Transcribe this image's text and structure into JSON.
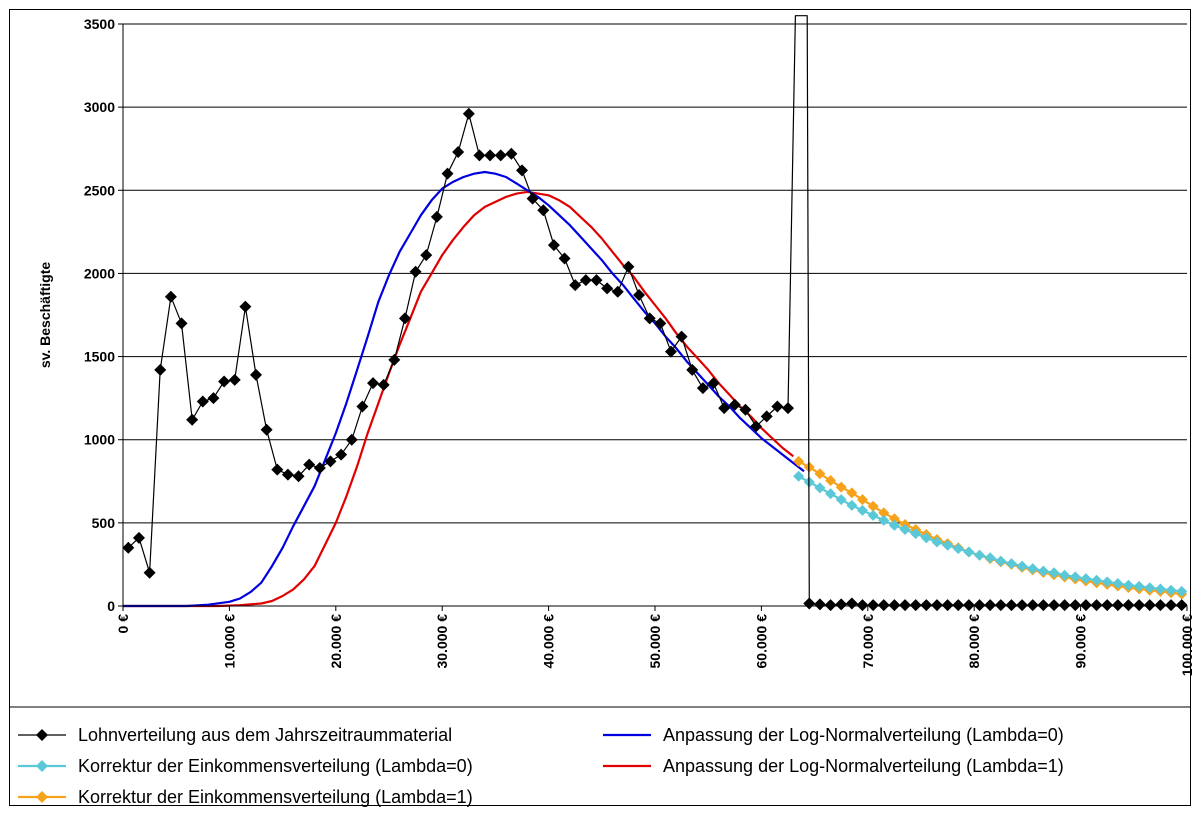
{
  "chart_data": {
    "type": "line",
    "title": "",
    "xlabel": "",
    "ylabel": "sv. Beschäftigte",
    "xlim": [
      0,
      100000
    ],
    "ylim": [
      0,
      3500
    ],
    "grid": "horizontal",
    "legend_placement": "bottom",
    "x_ticks": [
      {
        "value": 0,
        "label": "0 €"
      },
      {
        "value": 10000,
        "label": "10.000 €"
      },
      {
        "value": 20000,
        "label": "20.000 €"
      },
      {
        "value": 30000,
        "label": "30.000 €"
      },
      {
        "value": 40000,
        "label": "40.000 €"
      },
      {
        "value": 50000,
        "label": "50.000 €"
      },
      {
        "value": 60000,
        "label": "60.000 €"
      },
      {
        "value": 70000,
        "label": "70.000 €"
      },
      {
        "value": 80000,
        "label": "80.000 €"
      },
      {
        "value": 90000,
        "label": "90.000 €"
      },
      {
        "value": 100000,
        "label": "100.000 €"
      }
    ],
    "y_ticks": [
      {
        "value": 0,
        "label": "0"
      },
      {
        "value": 500,
        "label": "500"
      },
      {
        "value": 1000,
        "label": "1000"
      },
      {
        "value": 1500,
        "label": "1500"
      },
      {
        "value": 2000,
        "label": "2000"
      },
      {
        "value": 2500,
        "label": "2500"
      },
      {
        "value": 3000,
        "label": "3000"
      },
      {
        "value": 3500,
        "label": "3500"
      }
    ],
    "series": [
      {
        "name": "Lohnverteilung aus dem Jahrszeitraummaterial",
        "color": "#000000",
        "marker": "diamond",
        "line": true,
        "points": [
          [
            500,
            350
          ],
          [
            1500,
            410
          ],
          [
            2500,
            200
          ],
          [
            3500,
            1420
          ],
          [
            4500,
            1860
          ],
          [
            5500,
            1700
          ],
          [
            6500,
            1120
          ],
          [
            7500,
            1230
          ],
          [
            8500,
            1250
          ],
          [
            9500,
            1350
          ],
          [
            10500,
            1360
          ],
          [
            11500,
            1800
          ],
          [
            12500,
            1390
          ],
          [
            13500,
            1060
          ],
          [
            14500,
            820
          ],
          [
            15500,
            790
          ],
          [
            16500,
            780
          ],
          [
            17500,
            850
          ],
          [
            18500,
            830
          ],
          [
            19500,
            870
          ],
          [
            20500,
            910
          ],
          [
            21500,
            1000
          ],
          [
            22500,
            1200
          ],
          [
            23500,
            1340
          ],
          [
            24500,
            1330
          ],
          [
            25500,
            1480
          ],
          [
            26500,
            1730
          ],
          [
            27500,
            2010
          ],
          [
            28500,
            2110
          ],
          [
            29500,
            2340
          ],
          [
            30500,
            2600
          ],
          [
            31500,
            2730
          ],
          [
            32500,
            2960
          ],
          [
            33500,
            2710
          ],
          [
            34500,
            2710
          ],
          [
            35500,
            2710
          ],
          [
            36500,
            2720
          ],
          [
            37500,
            2620
          ],
          [
            38500,
            2450
          ],
          [
            39500,
            2380
          ],
          [
            40500,
            2170
          ],
          [
            41500,
            2090
          ],
          [
            42500,
            1930
          ],
          [
            43500,
            1960
          ],
          [
            44500,
            1960
          ],
          [
            45500,
            1910
          ],
          [
            46500,
            1890
          ],
          [
            47500,
            2040
          ],
          [
            48500,
            1870
          ],
          [
            49500,
            1730
          ],
          [
            50500,
            1700
          ],
          [
            51500,
            1530
          ],
          [
            52500,
            1620
          ],
          [
            53500,
            1420
          ],
          [
            54500,
            1310
          ],
          [
            55500,
            1340
          ],
          [
            56500,
            1190
          ],
          [
            57500,
            1210
          ],
          [
            58500,
            1180
          ],
          [
            59500,
            1080
          ],
          [
            60500,
            1140
          ],
          [
            61500,
            1200
          ],
          [
            62500,
            1190
          ],
          [
            63200,
            3550
          ],
          [
            64300,
            3550
          ],
          [
            64500,
            15
          ],
          [
            65500,
            10
          ],
          [
            66500,
            5
          ],
          [
            67500,
            10
          ],
          [
            68500,
            15
          ],
          [
            69500,
            5
          ],
          [
            70500,
            5
          ],
          [
            71500,
            5
          ],
          [
            72500,
            5
          ],
          [
            73500,
            5
          ],
          [
            74500,
            5
          ],
          [
            75500,
            5
          ],
          [
            76500,
            5
          ],
          [
            77500,
            5
          ],
          [
            78500,
            5
          ],
          [
            79500,
            5
          ],
          [
            80500,
            5
          ],
          [
            81500,
            5
          ],
          [
            82500,
            5
          ],
          [
            83500,
            5
          ],
          [
            84500,
            5
          ],
          [
            85500,
            5
          ],
          [
            86500,
            5
          ],
          [
            87500,
            5
          ],
          [
            88500,
            5
          ],
          [
            89500,
            5
          ],
          [
            90500,
            5
          ],
          [
            91500,
            5
          ],
          [
            92500,
            5
          ],
          [
            93500,
            5
          ],
          [
            94500,
            5
          ],
          [
            95500,
            5
          ],
          [
            96500,
            5
          ],
          [
            97500,
            5
          ],
          [
            98500,
            5
          ],
          [
            99500,
            5
          ]
        ]
      },
      {
        "name": "Anpassung der Log-Normalverteilung (Lambda=0)",
        "color": "#0000e0",
        "marker": "none",
        "line": true,
        "points": [
          [
            0,
            0
          ],
          [
            6000,
            0
          ],
          [
            8000,
            8
          ],
          [
            10000,
            25
          ],
          [
            11000,
            45
          ],
          [
            12000,
            85
          ],
          [
            13000,
            140
          ],
          [
            14000,
            240
          ],
          [
            15000,
            350
          ],
          [
            16000,
            480
          ],
          [
            17000,
            600
          ],
          [
            18000,
            720
          ],
          [
            19000,
            880
          ],
          [
            20000,
            1040
          ],
          [
            21000,
            1220
          ],
          [
            22000,
            1420
          ],
          [
            23000,
            1620
          ],
          [
            24000,
            1830
          ],
          [
            25000,
            1990
          ],
          [
            26000,
            2130
          ],
          [
            27000,
            2240
          ],
          [
            28000,
            2350
          ],
          [
            29000,
            2440
          ],
          [
            30000,
            2510
          ],
          [
            31000,
            2550
          ],
          [
            32000,
            2580
          ],
          [
            33000,
            2600
          ],
          [
            34000,
            2610
          ],
          [
            35000,
            2600
          ],
          [
            36000,
            2580
          ],
          [
            37000,
            2540
          ],
          [
            38000,
            2500
          ],
          [
            39000,
            2460
          ],
          [
            40000,
            2410
          ],
          [
            41000,
            2350
          ],
          [
            42000,
            2290
          ],
          [
            43000,
            2220
          ],
          [
            44000,
            2150
          ],
          [
            45000,
            2080
          ],
          [
            46000,
            2000
          ],
          [
            47000,
            1930
          ],
          [
            48000,
            1850
          ],
          [
            49000,
            1770
          ],
          [
            50000,
            1700
          ],
          [
            51000,
            1620
          ],
          [
            52000,
            1550
          ],
          [
            53000,
            1470
          ],
          [
            54000,
            1400
          ],
          [
            55000,
            1330
          ],
          [
            56000,
            1260
          ],
          [
            57000,
            1200
          ],
          [
            58000,
            1130
          ],
          [
            59000,
            1070
          ],
          [
            60000,
            1010
          ],
          [
            61000,
            960
          ],
          [
            62000,
            910
          ],
          [
            63000,
            860
          ],
          [
            64000,
            810
          ]
        ]
      },
      {
        "name": "Korrektur der Einkommensverteilung (Lambda=0)",
        "color": "#5bc8d8",
        "marker": "diamond",
        "line": true,
        "points": [
          [
            63500,
            780
          ],
          [
            64500,
            745
          ],
          [
            65500,
            710
          ],
          [
            66500,
            675
          ],
          [
            67500,
            640
          ],
          [
            68500,
            605
          ],
          [
            69500,
            575
          ],
          [
            70500,
            545
          ],
          [
            71500,
            515
          ],
          [
            72500,
            485
          ],
          [
            73500,
            460
          ],
          [
            74500,
            435
          ],
          [
            75500,
            410
          ],
          [
            76500,
            385
          ],
          [
            77500,
            365
          ],
          [
            78500,
            345
          ],
          [
            79500,
            325
          ],
          [
            80500,
            305
          ],
          [
            81500,
            290
          ],
          [
            82500,
            270
          ],
          [
            83500,
            255
          ],
          [
            84500,
            240
          ],
          [
            85500,
            225
          ],
          [
            86500,
            210
          ],
          [
            87500,
            200
          ],
          [
            88500,
            185
          ],
          [
            89500,
            175
          ],
          [
            90500,
            165
          ],
          [
            91500,
            155
          ],
          [
            92500,
            145
          ],
          [
            93500,
            135
          ],
          [
            94500,
            125
          ],
          [
            95500,
            118
          ],
          [
            96500,
            110
          ],
          [
            97500,
            102
          ],
          [
            98500,
            95
          ],
          [
            99500,
            88
          ]
        ]
      },
      {
        "name": "Anpassung der Log-Normalverteilung (Lambda=1)",
        "color": "#e00000",
        "marker": "none",
        "line": true,
        "points": [
          [
            0,
            0
          ],
          [
            9000,
            0
          ],
          [
            11000,
            5
          ],
          [
            12000,
            10
          ],
          [
            13000,
            15
          ],
          [
            14000,
            30
          ],
          [
            15000,
            60
          ],
          [
            16000,
            100
          ],
          [
            17000,
            160
          ],
          [
            18000,
            240
          ],
          [
            19000,
            370
          ],
          [
            20000,
            500
          ],
          [
            21000,
            660
          ],
          [
            22000,
            840
          ],
          [
            23000,
            1040
          ],
          [
            24000,
            1220
          ],
          [
            25000,
            1400
          ],
          [
            26000,
            1570
          ],
          [
            27000,
            1730
          ],
          [
            28000,
            1890
          ],
          [
            29000,
            2000
          ],
          [
            30000,
            2110
          ],
          [
            31000,
            2200
          ],
          [
            32000,
            2280
          ],
          [
            33000,
            2350
          ],
          [
            34000,
            2400
          ],
          [
            35000,
            2430
          ],
          [
            36000,
            2460
          ],
          [
            37000,
            2480
          ],
          [
            38000,
            2490
          ],
          [
            39000,
            2480
          ],
          [
            40000,
            2470
          ],
          [
            41000,
            2440
          ],
          [
            42000,
            2400
          ],
          [
            43000,
            2340
          ],
          [
            44000,
            2280
          ],
          [
            45000,
            2210
          ],
          [
            46000,
            2130
          ],
          [
            47000,
            2050
          ],
          [
            48000,
            1980
          ],
          [
            49000,
            1890
          ],
          [
            50000,
            1810
          ],
          [
            51000,
            1730
          ],
          [
            52000,
            1640
          ],
          [
            53000,
            1560
          ],
          [
            54000,
            1490
          ],
          [
            55000,
            1420
          ],
          [
            56000,
            1340
          ],
          [
            57000,
            1270
          ],
          [
            58000,
            1200
          ],
          [
            59000,
            1140
          ],
          [
            60000,
            1070
          ],
          [
            61000,
            1010
          ],
          [
            62000,
            950
          ],
          [
            63000,
            900
          ]
        ]
      },
      {
        "name": "Korrektur der Einkommensverteilung (Lambda=1)",
        "color": "#f7a21b",
        "marker": "diamond",
        "line": true,
        "points": [
          [
            63500,
            870
          ],
          [
            64500,
            835
          ],
          [
            65500,
            795
          ],
          [
            66500,
            755
          ],
          [
            67500,
            715
          ],
          [
            68500,
            680
          ],
          [
            69500,
            640
          ],
          [
            70500,
            600
          ],
          [
            71500,
            560
          ],
          [
            72500,
            525
          ],
          [
            73500,
            490
          ],
          [
            74500,
            460
          ],
          [
            75500,
            430
          ],
          [
            76500,
            400
          ],
          [
            77500,
            375
          ],
          [
            78500,
            350
          ],
          [
            79500,
            325
          ],
          [
            80500,
            305
          ],
          [
            81500,
            285
          ],
          [
            82500,
            265
          ],
          [
            83500,
            250
          ],
          [
            84500,
            232
          ],
          [
            85500,
            217
          ],
          [
            86500,
            202
          ],
          [
            87500,
            188
          ],
          [
            88500,
            175
          ],
          [
            89500,
            162
          ],
          [
            90500,
            150
          ],
          [
            91500,
            140
          ],
          [
            92500,
            130
          ],
          [
            93500,
            120
          ],
          [
            94500,
            111
          ],
          [
            95500,
            103
          ],
          [
            96500,
            95
          ],
          [
            97500,
            88
          ],
          [
            98500,
            80
          ],
          [
            99500,
            72
          ]
        ]
      }
    ]
  }
}
